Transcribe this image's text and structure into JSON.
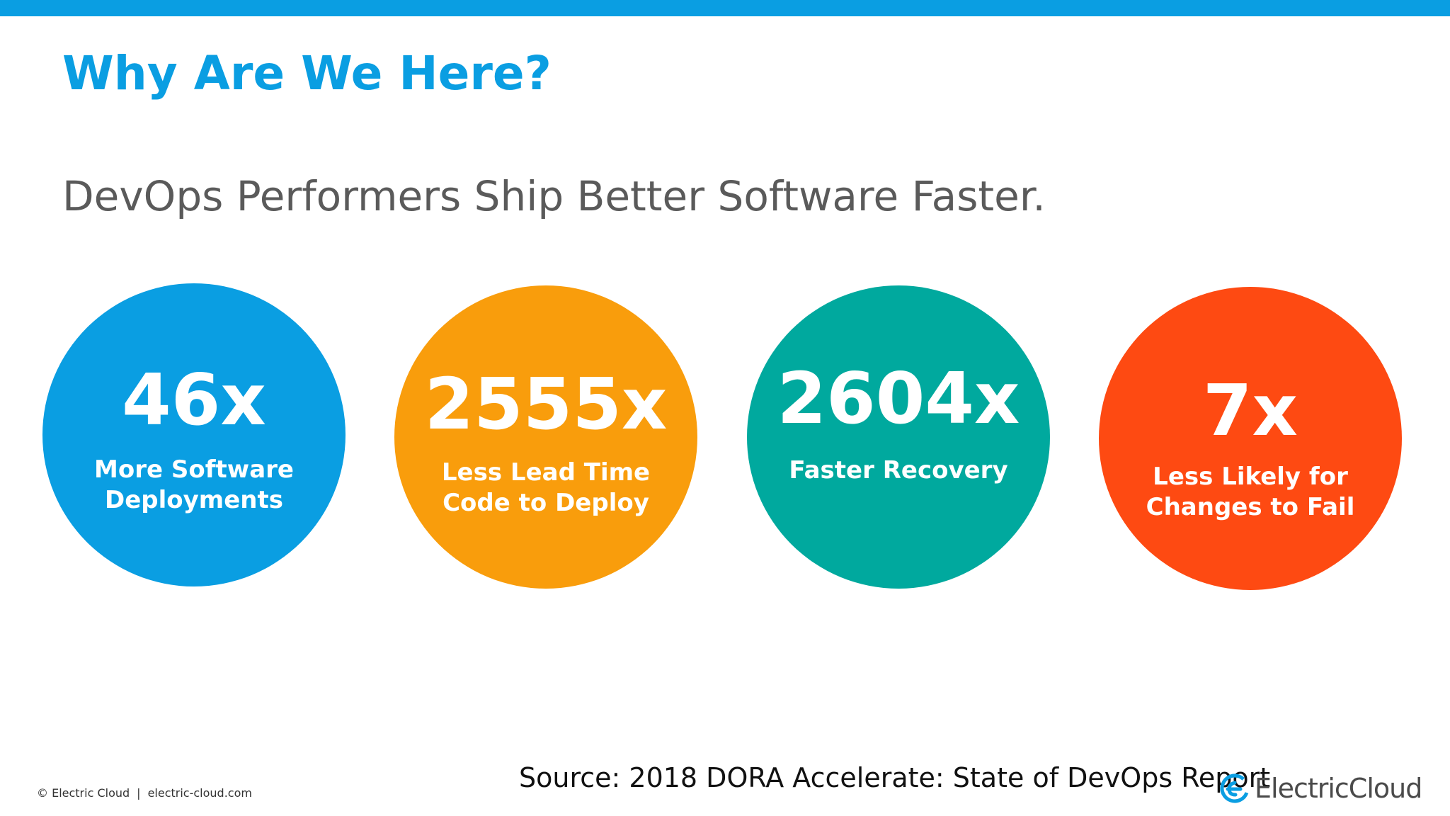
{
  "title": "Why Are We Here?",
  "subtitle": "DevOps Performers Ship Better Software Faster.",
  "stats": [
    {
      "value": "46x",
      "label_lines": [
        "More Software",
        "Deployments"
      ],
      "color": "#0a9ee2"
    },
    {
      "value": "2555x",
      "label_lines": [
        "Less Lead Time",
        "Code to Deploy"
      ],
      "color": "#f99d0c"
    },
    {
      "value": "2604x",
      "label_lines": [
        "Faster Recovery"
      ],
      "color": "#00a99e"
    },
    {
      "value": "7x",
      "label_lines": [
        "Less Likely for",
        "Changes to Fail"
      ],
      "color": "#fe4a12"
    }
  ],
  "source": "Source: 2018 DORA Accelerate: State of DevOps Report",
  "footer": {
    "copyright": "© Electric Cloud",
    "separator": "|",
    "website": "electric-cloud.com"
  },
  "logo": {
    "text": "ElectricCloud",
    "icon": "electric-cloud-logo-icon"
  },
  "colors": {
    "accent": "#0a9ee2",
    "subtitle_text": "#5a5a5a"
  }
}
